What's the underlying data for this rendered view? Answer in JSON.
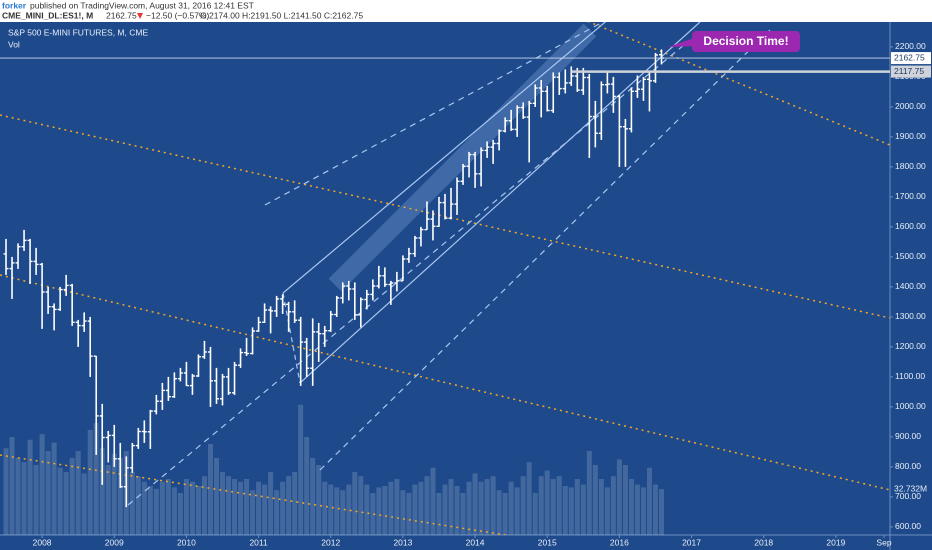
{
  "chart_data": {
    "type": "ohlc",
    "title": "S&P 500 E-MINI FUTURES, M, CME",
    "header": {
      "author": "forker",
      "text": "published on TradingView.com, August 31, 2016 12:41 EST",
      "symbol": "CME_MINI_DL:ES1!, M",
      "last": "2162.75",
      "change": "−12.50 (−0.57%)",
      "ohlc": "O:2174.00 H:2191.50 L:2141.50 C:2162.75"
    },
    "color": "#ffffff",
    "x": [
      "2007-07",
      "2007-08",
      "2007-09",
      "2007-10",
      "2007-11",
      "2007-12",
      "2008-01",
      "2008-02",
      "2008-03",
      "2008-04",
      "2008-05",
      "2008-06",
      "2008-07",
      "2008-08",
      "2008-09",
      "2008-10",
      "2008-11",
      "2008-12",
      "2009-01",
      "2009-02",
      "2009-03",
      "2009-04",
      "2009-05",
      "2009-06",
      "2009-07",
      "2009-08",
      "2009-09",
      "2009-10",
      "2009-11",
      "2009-12",
      "2010-01",
      "2010-02",
      "2010-03",
      "2010-04",
      "2010-05",
      "2010-06",
      "2010-07",
      "2010-08",
      "2010-09",
      "2010-10",
      "2010-11",
      "2010-12",
      "2011-01",
      "2011-02",
      "2011-03",
      "2011-04",
      "2011-05",
      "2011-06",
      "2011-07",
      "2011-08",
      "2011-09",
      "2011-10",
      "2011-11",
      "2011-12",
      "2012-01",
      "2012-02",
      "2012-03",
      "2012-04",
      "2012-05",
      "2012-06",
      "2012-07",
      "2012-08",
      "2012-09",
      "2012-10",
      "2012-11",
      "2012-12",
      "2013-01",
      "2013-02",
      "2013-03",
      "2013-04",
      "2013-05",
      "2013-06",
      "2013-07",
      "2013-08",
      "2013-09",
      "2013-10",
      "2013-11",
      "2013-12",
      "2014-01",
      "2014-02",
      "2014-03",
      "2014-04",
      "2014-05",
      "2014-06",
      "2014-07",
      "2014-08",
      "2014-09",
      "2014-10",
      "2014-11",
      "2014-12",
      "2015-01",
      "2015-02",
      "2015-03",
      "2015-04",
      "2015-05",
      "2015-06",
      "2015-07",
      "2015-08",
      "2015-09",
      "2015-10",
      "2015-11",
      "2015-12",
      "2016-01",
      "2016-02",
      "2016-03",
      "2016-04",
      "2016-05",
      "2016-06",
      "2016-07",
      "2016-08"
    ],
    "open": [
      1510,
      1461,
      1480,
      1534,
      1555,
      1485,
      1475,
      1383,
      1334,
      1325,
      1391,
      1405,
      1282,
      1271,
      1286,
      1169,
      970,
      898,
      905,
      827,
      734,
      797,
      871,
      918,
      917,
      986,
      1019,
      1055,
      1034,
      1094,
      1113,
      1071,
      1103,
      1167,
      1183,
      1087,
      1027,
      1100,
      1047,
      1139,
      1181,
      1178,
      1253,
      1282,
      1323,
      1320,
      1360,
      1342,
      1317,
      1289,
      1216,
      1129,
      1250,
      1244,
      1254,
      1308,
      1363,
      1403,
      1393,
      1307,
      1358,
      1375,
      1403,
      1437,
      1408,
      1413,
      1420,
      1493,
      1511,
      1563,
      1591,
      1626,
      1602,
      1681,
      1629,
      1676,
      1752,
      1802,
      1841,
      1777,
      1855,
      1866,
      1878,
      1920,
      1954,
      1925,
      1998,
      1966,
      2012,
      2063,
      2052,
      1988,
      2099,
      2061,
      2080,
      2103,
      2056,
      2098,
      1968,
      1912,
      2074,
      2076,
      2035,
      1934,
      1927,
      2052,
      2059,
      2092,
      2087,
      2174
    ],
    "high": [
      1560,
      1500,
      1545,
      1590,
      1560,
      1530,
      1480,
      1400,
      1345,
      1400,
      1440,
      1410,
      1290,
      1315,
      1300,
      1170,
      1010,
      920,
      940,
      880,
      835,
      880,
      930,
      955,
      990,
      1040,
      1080,
      1100,
      1115,
      1130,
      1150,
      1110,
      1175,
      1220,
      1200,
      1130,
      1110,
      1130,
      1150,
      1195,
      1230,
      1265,
      1300,
      1345,
      1335,
      1370,
      1375,
      1350,
      1355,
      1300,
      1230,
      1295,
      1280,
      1270,
      1320,
      1370,
      1415,
      1420,
      1415,
      1365,
      1390,
      1425,
      1470,
      1465,
      1420,
      1450,
      1505,
      1530,
      1570,
      1600,
      1685,
      1655,
      1700,
      1710,
      1730,
      1765,
      1810,
      1850,
      1850,
      1865,
      1885,
      1890,
      1925,
      1965,
      1990,
      2005,
      2015,
      2020,
      2075,
      2090,
      2070,
      2115,
      2115,
      2125,
      2135,
      2130,
      2130,
      2110,
      2020,
      2085,
      2115,
      2100,
      2040,
      1960,
      2065,
      2105,
      2100,
      2115,
      2180,
      2191.5
    ],
    "low": [
      1440,
      1360,
      1460,
      1520,
      1410,
      1440,
      1260,
      1310,
      1255,
      1320,
      1370,
      1270,
      1200,
      1250,
      1100,
      840,
      740,
      815,
      800,
      730,
      666,
      780,
      860,
      880,
      860,
      975,
      990,
      1020,
      1030,
      1085,
      1070,
      1040,
      1100,
      1160,
      1000,
      1010,
      1005,
      1040,
      1040,
      1130,
      1170,
      1175,
      1250,
      1280,
      1245,
      1300,
      1310,
      1250,
      1280,
      1070,
      1100,
      1070,
      1150,
      1200,
      1250,
      1300,
      1345,
      1355,
      1290,
      1265,
      1325,
      1355,
      1395,
      1400,
      1340,
      1385,
      1420,
      1480,
      1500,
      1535,
      1590,
      1555,
      1600,
      1625,
      1625,
      1640,
      1740,
      1765,
      1730,
      1735,
      1830,
      1810,
      1855,
      1915,
      1920,
      1900,
      1960,
      1815,
      2000,
      1965,
      1985,
      1980,
      2040,
      2045,
      2070,
      2050,
      2040,
      1830,
      1865,
      1890,
      2045,
      1980,
      1800,
      1800,
      1915,
      2030,
      2020,
      1985,
      2080,
      2141.5
    ],
    "close": [
      1461,
      1480,
      1534,
      1555,
      1485,
      1475,
      1383,
      1334,
      1325,
      1391,
      1405,
      1282,
      1271,
      1286,
      1169,
      970,
      898,
      905,
      827,
      734,
      797,
      871,
      918,
      917,
      986,
      1019,
      1055,
      1034,
      1094,
      1113,
      1071,
      1103,
      1167,
      1183,
      1087,
      1027,
      1100,
      1047,
      1139,
      1181,
      1178,
      1253,
      1282,
      1323,
      1320,
      1360,
      1342,
      1317,
      1289,
      1216,
      1129,
      1250,
      1244,
      1254,
      1308,
      1363,
      1403,
      1393,
      1307,
      1358,
      1375,
      1403,
      1437,
      1408,
      1413,
      1420,
      1493,
      1511,
      1563,
      1591,
      1626,
      1602,
      1681,
      1629,
      1676,
      1752,
      1802,
      1841,
      1777,
      1855,
      1866,
      1878,
      1920,
      1954,
      1925,
      1998,
      1966,
      2012,
      2063,
      2052,
      1988,
      2099,
      2061,
      2080,
      2103,
      2056,
      2098,
      1968,
      1912,
      2074,
      2076,
      2035,
      1934,
      1927,
      2052,
      2059,
      2092,
      2087,
      2173,
      2162.75
    ],
    "volume": {
      "name": "Vol",
      "label": "32.732M",
      "values": [
        62,
        70,
        55,
        52,
        68,
        50,
        72,
        60,
        66,
        48,
        45,
        55,
        60,
        44,
        75,
        80,
        62,
        50,
        58,
        55,
        60,
        45,
        42,
        38,
        35,
        33,
        38,
        40,
        34,
        30,
        40,
        38,
        35,
        42,
        65,
        55,
        45,
        42,
        40,
        38,
        40,
        32,
        38,
        36,
        45,
        32,
        38,
        42,
        45,
        93,
        70,
        55,
        50,
        38,
        36,
        34,
        32,
        36,
        45,
        42,
        36,
        30,
        34,
        35,
        38,
        40,
        32,
        30,
        36,
        38,
        42,
        48,
        30,
        36,
        40,
        35,
        30,
        38,
        44,
        38,
        40,
        42,
        32,
        30,
        38,
        34,
        42,
        52,
        30,
        42,
        46,
        40,
        42,
        35,
        34,
        40,
        36,
        60,
        50,
        40,
        34,
        42,
        54,
        50,
        40,
        36,
        34,
        48,
        36,
        32.732
      ]
    },
    "level": 2117.75,
    "annotation": "Decision Time!",
    "grid": false,
    "xlim": [
      "2007-06",
      "2019-10"
    ],
    "xticks": [
      {
        "value": "2008-01",
        "label": "2008"
      },
      {
        "value": "2009-01",
        "label": "2009"
      },
      {
        "value": "2010-01",
        "label": "2010"
      },
      {
        "value": "2011-01",
        "label": "2011"
      },
      {
        "value": "2012-01",
        "label": "2012"
      },
      {
        "value": "2013-01",
        "label": "2013"
      },
      {
        "value": "2014-01",
        "label": "2014"
      },
      {
        "value": "2015-01",
        "label": "2015"
      },
      {
        "value": "2016-01",
        "label": "2016"
      },
      {
        "value": "2017-01",
        "label": "2017"
      },
      {
        "value": "2018-01",
        "label": "2018"
      },
      {
        "value": "2019-01",
        "label": "2019"
      },
      {
        "value": "2019-09",
        "label": "Sep"
      }
    ],
    "ylim": [
      573,
      2283
    ],
    "yticks": [
      {
        "value": 600,
        "label": "600.00"
      },
      {
        "value": 700,
        "label": "700.00"
      },
      {
        "value": 800,
        "label": "800.00"
      },
      {
        "value": 900,
        "label": "900.00"
      },
      {
        "value": 1000,
        "label": "1000.00"
      },
      {
        "value": 1100,
        "label": "1100.00"
      },
      {
        "value": 1200,
        "label": "1200.00"
      },
      {
        "value": 1300,
        "label": "1300.00"
      },
      {
        "value": 1400,
        "label": "1400.00"
      },
      {
        "value": 1500,
        "label": "1500.00"
      },
      {
        "value": 1600,
        "label": "1600.00"
      },
      {
        "value": 1700,
        "label": "1700.00"
      },
      {
        "value": 1800,
        "label": "1800.00"
      },
      {
        "value": 1900,
        "label": "1900.00"
      },
      {
        "value": 2000,
        "label": "2000.00"
      },
      {
        "value": 2100,
        "label": "2100.00"
      },
      {
        "value": 2200,
        "label": "2200.00"
      }
    ]
  }
}
